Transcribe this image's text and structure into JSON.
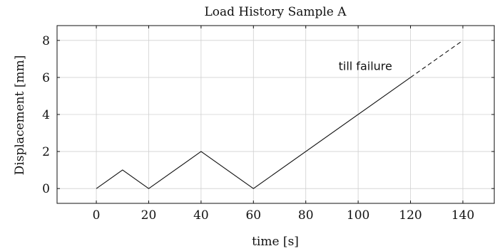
{
  "chart_data": {
    "type": "line",
    "title": "Load History Sample A",
    "xlabel": "time [s]",
    "ylabel": "Displacement [mm]",
    "xlim": [
      -15,
      152
    ],
    "ylim": [
      -0.8,
      8.8
    ],
    "xticks": [
      0,
      20,
      40,
      60,
      80,
      100,
      120,
      140
    ],
    "yticks": [
      0,
      2,
      4,
      6,
      8
    ],
    "grid": true,
    "series": [
      {
        "style": "solid",
        "x": [
          0,
          10,
          20,
          40,
          60,
          120
        ],
        "y": [
          0,
          1,
          0,
          2,
          0,
          6
        ]
      },
      {
        "style": "dashed",
        "x": [
          120,
          140
        ],
        "y": [
          6,
          8
        ]
      }
    ],
    "annotations": [
      {
        "text": "till failure",
        "x": 113,
        "y": 6.4
      }
    ]
  }
}
